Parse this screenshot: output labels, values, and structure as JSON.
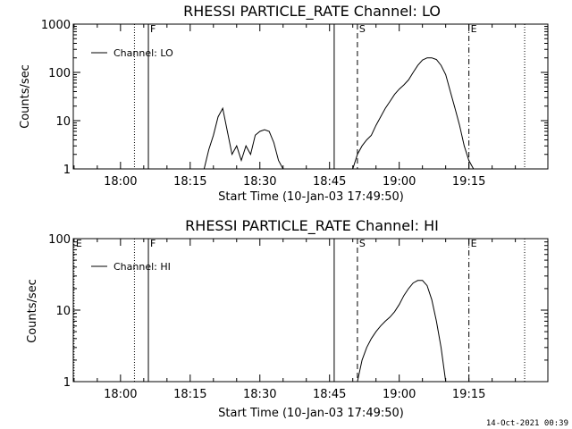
{
  "footer_timestamp": "14-Oct-2021 00:39",
  "chart_data": [
    {
      "type": "line",
      "title": "RHESSI PARTICLE_RATE Channel: LO",
      "xlabel": "Start Time (10-Jan-03 17:49:50)",
      "ylabel": "Counts/sec",
      "yscale": "log",
      "ylim": [
        1,
        1000
      ],
      "ytick_labels": [
        "1",
        "10",
        "100",
        "1000"
      ],
      "xtick_labels": [
        "18:00",
        "18:15",
        "18:30",
        "18:45",
        "19:00",
        "19:15"
      ],
      "legend": [
        "Channel: LO"
      ],
      "legend_position": "top-left",
      "markers": [
        {
          "label": "F",
          "time": "18:06",
          "style": "solid"
        },
        {
          "label": "",
          "time": "18:03",
          "style": "dotted"
        },
        {
          "label": "",
          "time": "18:46",
          "style": "solid"
        },
        {
          "label": "S",
          "time": "18:51",
          "style": "dashed"
        },
        {
          "label": "E",
          "time": "19:15",
          "style": "dashdot"
        },
        {
          "label": "",
          "time": "19:27",
          "style": "dotted"
        }
      ],
      "series": [
        {
          "name": "Channel: LO",
          "color": "#000000",
          "x": [
            "18:18",
            "18:19",
            "18:20",
            "18:21",
            "18:22",
            "18:23",
            "18:24",
            "18:25",
            "18:26",
            "18:27",
            "18:28",
            "18:29",
            "18:30",
            "18:31",
            "18:32",
            "18:33",
            "18:34",
            "18:35",
            "18:50",
            "18:51",
            "18:52",
            "18:53",
            "18:54",
            "18:55",
            "18:56",
            "18:57",
            "18:58",
            "18:59",
            "19:00",
            "19:01",
            "19:02",
            "19:03",
            "19:04",
            "19:05",
            "19:06",
            "19:07",
            "19:08",
            "19:09",
            "19:10",
            "19:11",
            "19:12",
            "19:13",
            "19:14",
            "19:15",
            "19:16"
          ],
          "values": [
            1,
            2.5,
            5,
            12,
            18,
            6,
            2,
            3,
            1.5,
            3,
            2,
            5,
            6,
            6.5,
            6,
            3.5,
            1.5,
            1,
            1,
            2,
            3,
            4,
            5,
            8,
            12,
            18,
            25,
            35,
            45,
            55,
            70,
            100,
            140,
            180,
            200,
            200,
            185,
            140,
            90,
            40,
            18,
            8,
            3,
            1.5,
            1
          ]
        }
      ]
    },
    {
      "type": "line",
      "title": "RHESSI PARTICLE_RATE Channel: HI",
      "xlabel": "Start Time (10-Jan-03 17:49:50)",
      "ylabel": "Counts/sec",
      "yscale": "log",
      "ylim": [
        1,
        100
      ],
      "ytick_labels": [
        "1",
        "10",
        "100"
      ],
      "xtick_labels": [
        "18:00",
        "18:15",
        "18:30",
        "18:45",
        "19:00",
        "19:15"
      ],
      "legend": [
        "Channel: HI"
      ],
      "legend_position": "top-left",
      "markers": [
        {
          "label": "E",
          "time": "17:50",
          "style": "dotted"
        },
        {
          "label": "F",
          "time": "18:06",
          "style": "solid"
        },
        {
          "label": "",
          "time": "18:03",
          "style": "dotted"
        },
        {
          "label": "",
          "time": "18:46",
          "style": "solid"
        },
        {
          "label": "S",
          "time": "18:51",
          "style": "dashed"
        },
        {
          "label": "E",
          "time": "19:15",
          "style": "dashdot"
        },
        {
          "label": "",
          "time": "19:27",
          "style": "dotted"
        }
      ],
      "series": [
        {
          "name": "Channel: HI",
          "color": "#000000",
          "x": [
            "18:51",
            "18:52",
            "18:53",
            "18:54",
            "18:55",
            "18:56",
            "18:57",
            "18:58",
            "18:59",
            "19:00",
            "19:01",
            "19:02",
            "19:03",
            "19:04",
            "19:05",
            "19:06",
            "19:07",
            "19:08",
            "19:09",
            "19:10"
          ],
          "values": [
            1,
            2,
            3,
            4,
            5,
            6,
            7,
            8,
            9.5,
            12,
            16,
            20,
            24,
            26,
            26,
            22,
            14,
            7,
            3,
            1
          ]
        }
      ]
    }
  ]
}
